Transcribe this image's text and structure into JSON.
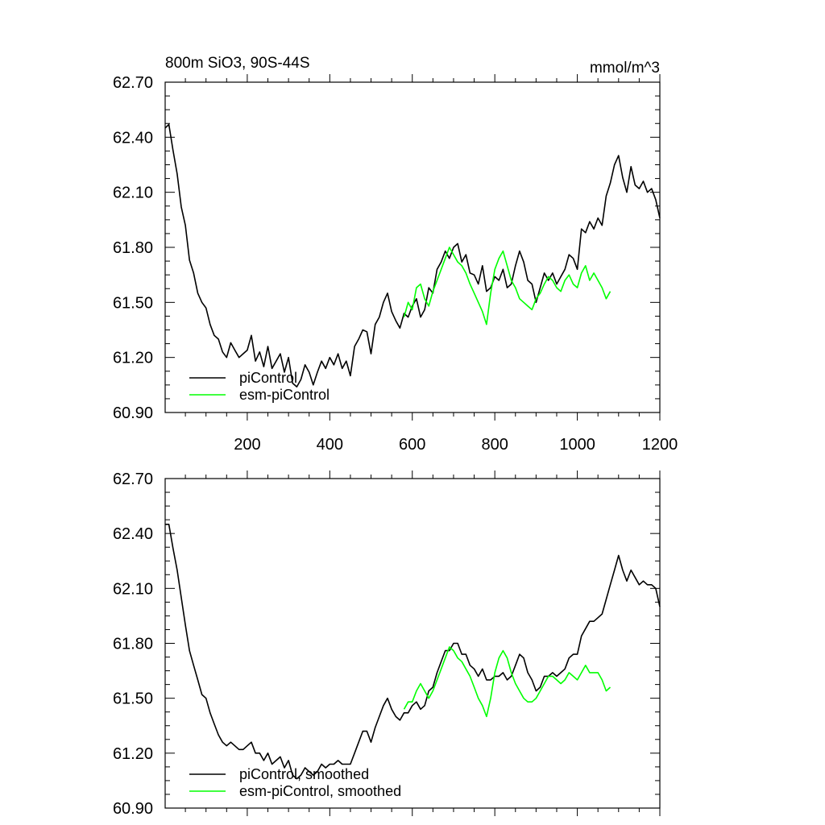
{
  "chart_data": [
    {
      "type": "line",
      "title": "800m SiO3, 90S-44S",
      "units": "mmol/m^3",
      "xlim": [
        1,
        1200
      ],
      "ylim": [
        60.9,
        62.7
      ],
      "xticks": [
        200,
        400,
        600,
        800,
        1000,
        1200
      ],
      "yticks": [
        60.9,
        61.2,
        61.5,
        61.8,
        62.1,
        62.4,
        62.7
      ],
      "ytick_labels": [
        "60.90",
        "61.20",
        "61.50",
        "61.80",
        "62.10",
        "62.40",
        "62.70"
      ],
      "xtick_labels": [
        "200",
        "400",
        "600",
        "800",
        "1000",
        "1200"
      ],
      "show_x_labels": true,
      "grid": false,
      "legend_position": "bottom-left",
      "series": [
        {
          "name": "piControl",
          "color": "#000000",
          "x": [
            1,
            10,
            20,
            30,
            40,
            50,
            60,
            70,
            80,
            90,
            100,
            110,
            120,
            130,
            140,
            150,
            160,
            170,
            180,
            190,
            200,
            210,
            220,
            230,
            240,
            250,
            260,
            270,
            280,
            290,
            300,
            310,
            320,
            330,
            340,
            350,
            360,
            370,
            380,
            390,
            400,
            410,
            420,
            430,
            440,
            450,
            460,
            470,
            480,
            490,
            500,
            510,
            520,
            530,
            540,
            550,
            560,
            570,
            580,
            590,
            600,
            610,
            620,
            630,
            640,
            650,
            660,
            670,
            680,
            690,
            700,
            710,
            720,
            730,
            740,
            750,
            760,
            770,
            780,
            790,
            800,
            810,
            820,
            830,
            840,
            850,
            860,
            870,
            880,
            890,
            900,
            910,
            920,
            930,
            940,
            950,
            960,
            970,
            980,
            990,
            1000,
            1010,
            1020,
            1030,
            1040,
            1050,
            1060,
            1070,
            1080,
            1090,
            1100,
            1110,
            1120,
            1130,
            1140,
            1150,
            1160,
            1170,
            1180,
            1190,
            1200
          ],
          "y": [
            62.45,
            62.47,
            62.33,
            62.2,
            62.02,
            61.92,
            61.73,
            61.66,
            61.55,
            61.5,
            61.47,
            61.38,
            61.32,
            61.3,
            61.23,
            61.2,
            61.28,
            61.24,
            61.2,
            61.22,
            61.24,
            61.32,
            61.18,
            61.23,
            61.15,
            61.26,
            61.14,
            61.18,
            61.22,
            61.12,
            61.2,
            61.06,
            61.04,
            61.08,
            61.16,
            61.12,
            61.05,
            61.12,
            61.18,
            61.14,
            61.2,
            61.16,
            61.22,
            61.14,
            61.18,
            61.1,
            61.26,
            61.3,
            61.35,
            61.34,
            61.22,
            61.38,
            61.42,
            61.5,
            61.55,
            61.45,
            61.4,
            61.36,
            61.44,
            61.42,
            61.48,
            61.52,
            61.42,
            61.46,
            61.58,
            61.55,
            61.68,
            61.72,
            61.78,
            61.74,
            61.8,
            61.82,
            61.72,
            61.76,
            61.66,
            61.65,
            61.6,
            61.7,
            61.56,
            61.58,
            61.64,
            61.62,
            61.68,
            61.58,
            61.6,
            61.7,
            61.78,
            61.72,
            61.62,
            61.6,
            61.5,
            61.58,
            61.66,
            61.62,
            61.66,
            61.6,
            61.64,
            61.68,
            61.76,
            61.74,
            61.68,
            61.9,
            61.88,
            61.94,
            61.9,
            61.96,
            61.92,
            62.08,
            62.15,
            62.25,
            62.3,
            62.18,
            62.1,
            62.24,
            62.14,
            62.12,
            62.16,
            62.1,
            62.12,
            62.06,
            61.96
          ]
        },
        {
          "name": "esm-piControl",
          "color": "#00ff00",
          "x": [
            580,
            590,
            600,
            610,
            620,
            630,
            640,
            650,
            660,
            670,
            680,
            690,
            700,
            710,
            720,
            730,
            740,
            750,
            760,
            770,
            780,
            790,
            800,
            810,
            820,
            830,
            840,
            850,
            860,
            870,
            880,
            890,
            900,
            910,
            920,
            930,
            940,
            950,
            960,
            970,
            980,
            990,
            1000,
            1010,
            1020,
            1030,
            1040,
            1050,
            1060,
            1070,
            1080
          ],
          "y": [
            61.42,
            61.5,
            61.46,
            61.58,
            61.6,
            61.52,
            61.48,
            61.56,
            61.62,
            61.68,
            61.74,
            61.8,
            61.76,
            61.72,
            61.7,
            61.66,
            61.6,
            61.55,
            61.5,
            61.45,
            61.38,
            61.55,
            61.68,
            61.74,
            61.78,
            61.7,
            61.62,
            61.58,
            61.52,
            61.5,
            61.48,
            61.46,
            61.52,
            61.55,
            61.6,
            61.64,
            61.62,
            61.58,
            61.56,
            61.62,
            61.65,
            61.6,
            61.58,
            61.66,
            61.7,
            61.62,
            61.66,
            61.62,
            61.58,
            61.52,
            61.56
          ]
        }
      ]
    },
    {
      "type": "line",
      "title": "",
      "units": "",
      "xlim": [
        1,
        1200
      ],
      "ylim": [
        60.9,
        62.7
      ],
      "xticks": [
        200,
        400,
        600,
        800,
        1000,
        1200
      ],
      "yticks": [
        60.9,
        61.2,
        61.5,
        61.8,
        62.1,
        62.4,
        62.7
      ],
      "ytick_labels": [
        "60.90",
        "61.20",
        "61.50",
        "61.80",
        "62.10",
        "62.40",
        "62.70"
      ],
      "xtick_labels": [],
      "show_x_labels": false,
      "grid": false,
      "legend_position": "bottom-left",
      "series": [
        {
          "name": "piControl, smoothed",
          "color": "#000000",
          "x": [
            1,
            10,
            20,
            30,
            40,
            50,
            60,
            70,
            80,
            90,
            100,
            110,
            120,
            130,
            140,
            150,
            160,
            170,
            180,
            190,
            200,
            210,
            220,
            230,
            240,
            250,
            260,
            270,
            280,
            290,
            300,
            310,
            320,
            330,
            340,
            350,
            360,
            370,
            380,
            390,
            400,
            410,
            420,
            430,
            440,
            450,
            460,
            470,
            480,
            490,
            500,
            510,
            520,
            530,
            540,
            550,
            560,
            570,
            580,
            590,
            600,
            610,
            620,
            630,
            640,
            650,
            660,
            670,
            680,
            690,
            700,
            710,
            720,
            730,
            740,
            750,
            760,
            770,
            780,
            790,
            800,
            810,
            820,
            830,
            840,
            850,
            860,
            870,
            880,
            890,
            900,
            910,
            920,
            930,
            940,
            950,
            960,
            970,
            980,
            990,
            1000,
            1010,
            1020,
            1030,
            1040,
            1050,
            1060,
            1070,
            1080,
            1090,
            1100,
            1110,
            1120,
            1130,
            1140,
            1150,
            1160,
            1170,
            1180,
            1190,
            1200
          ],
          "y": [
            62.45,
            62.45,
            62.32,
            62.2,
            62.05,
            61.9,
            61.76,
            61.68,
            61.6,
            61.52,
            61.5,
            61.42,
            61.36,
            61.3,
            61.26,
            61.24,
            61.26,
            61.24,
            61.22,
            61.22,
            61.24,
            61.26,
            61.2,
            61.2,
            61.16,
            61.2,
            61.14,
            61.16,
            61.18,
            61.12,
            61.16,
            61.08,
            61.06,
            61.08,
            61.12,
            61.1,
            61.08,
            61.1,
            61.14,
            61.12,
            61.14,
            61.14,
            61.16,
            61.14,
            61.14,
            61.14,
            61.2,
            61.26,
            61.32,
            61.32,
            61.26,
            61.34,
            61.4,
            61.46,
            61.5,
            61.44,
            61.4,
            61.38,
            61.42,
            61.42,
            61.46,
            61.48,
            61.44,
            61.46,
            61.54,
            61.56,
            61.64,
            61.7,
            61.76,
            61.76,
            61.8,
            61.8,
            61.74,
            61.74,
            61.68,
            61.66,
            61.62,
            61.66,
            61.6,
            61.6,
            61.62,
            61.62,
            61.64,
            61.6,
            61.62,
            61.68,
            61.74,
            61.72,
            61.64,
            61.6,
            61.54,
            61.56,
            61.62,
            61.62,
            61.64,
            61.62,
            61.64,
            61.66,
            61.72,
            61.74,
            61.74,
            61.84,
            61.88,
            61.92,
            61.92,
            61.94,
            61.96,
            62.04,
            62.12,
            62.2,
            62.28,
            62.2,
            62.14,
            62.2,
            62.16,
            62.12,
            62.14,
            62.12,
            62.12,
            62.1,
            62.0
          ]
        },
        {
          "name": "esm-piControl, smoothed",
          "color": "#00ff00",
          "x": [
            580,
            590,
            600,
            610,
            620,
            630,
            640,
            650,
            660,
            670,
            680,
            690,
            700,
            710,
            720,
            730,
            740,
            750,
            760,
            770,
            780,
            790,
            800,
            810,
            820,
            830,
            840,
            850,
            860,
            870,
            880,
            890,
            900,
            910,
            920,
            930,
            940,
            950,
            960,
            970,
            980,
            990,
            1000,
            1010,
            1020,
            1030,
            1040,
            1050,
            1060,
            1070,
            1080
          ],
          "y": [
            61.44,
            61.48,
            61.48,
            61.54,
            61.58,
            61.54,
            61.5,
            61.54,
            61.6,
            61.66,
            61.72,
            61.78,
            61.76,
            61.72,
            61.7,
            61.66,
            61.62,
            61.56,
            61.5,
            61.46,
            61.4,
            61.5,
            61.64,
            61.72,
            61.76,
            61.72,
            61.64,
            61.58,
            61.54,
            61.5,
            61.48,
            61.48,
            61.5,
            61.54,
            61.58,
            61.62,
            61.62,
            61.6,
            61.58,
            61.6,
            61.64,
            61.62,
            61.6,
            61.64,
            61.68,
            61.64,
            61.64,
            61.64,
            61.6,
            61.54,
            61.56
          ]
        }
      ]
    }
  ]
}
